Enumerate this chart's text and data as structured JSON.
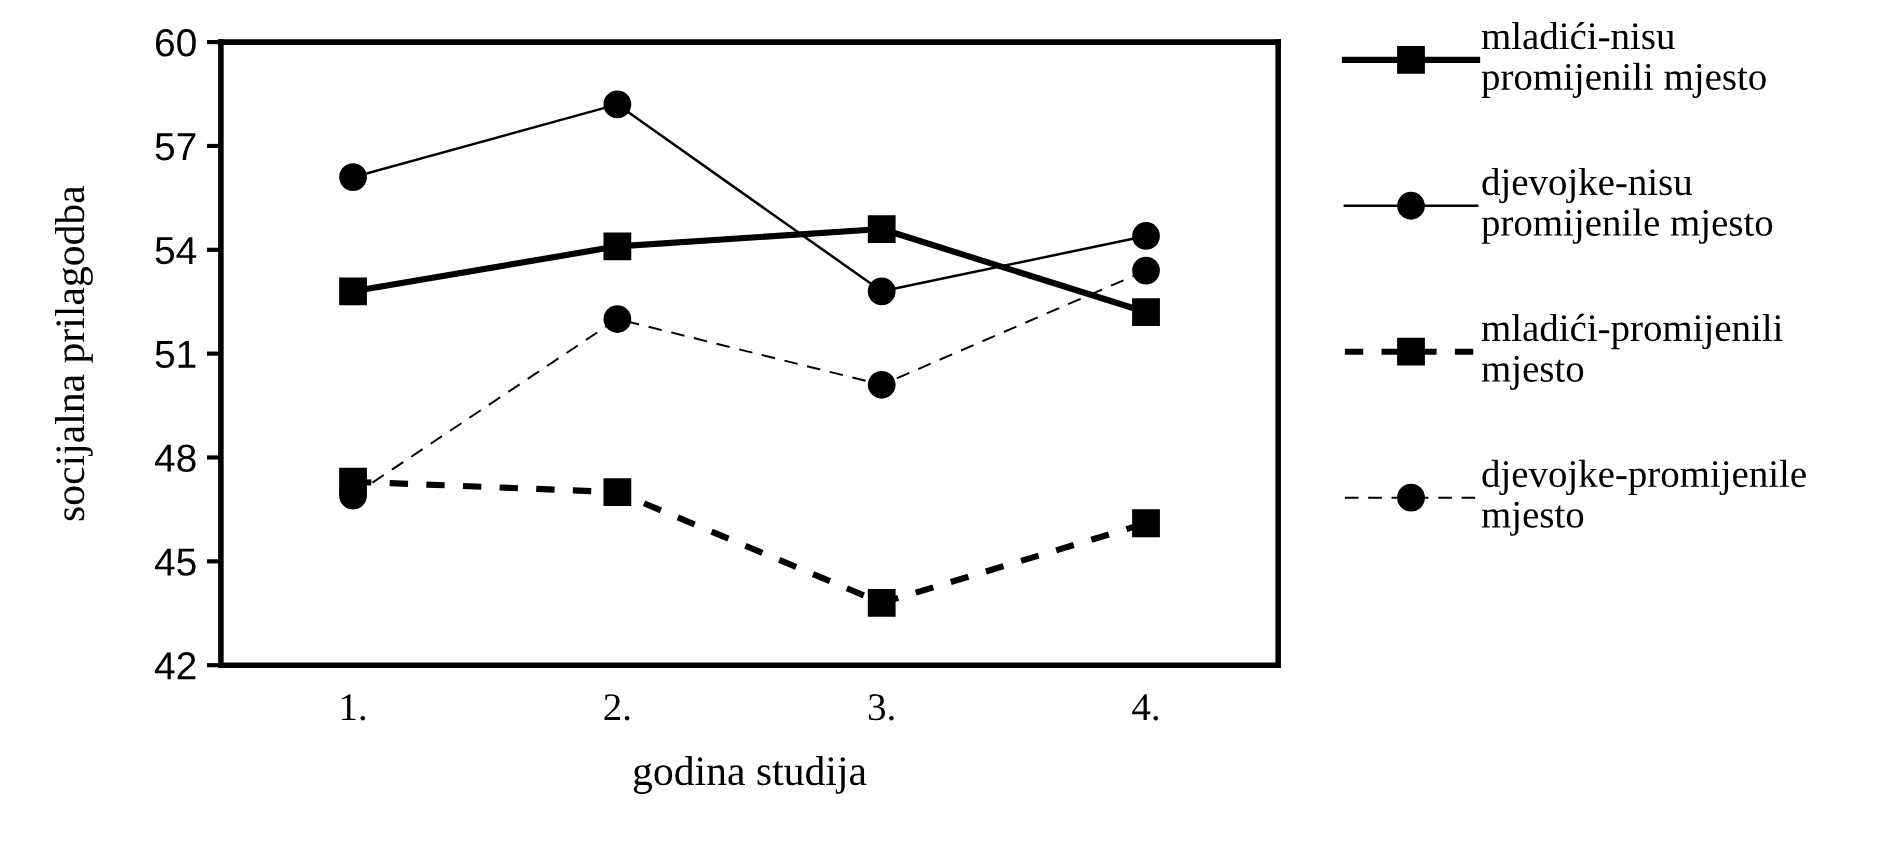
{
  "chart_data": {
    "type": "line",
    "xlabel": "godina studija",
    "ylabel": "socijalna prilagodba",
    "categories": [
      "1.",
      "2.",
      "3.",
      "4."
    ],
    "ylim": [
      42,
      60
    ],
    "yticks": [
      42,
      45,
      48,
      51,
      54,
      57,
      60
    ],
    "grid": false,
    "legend": "right",
    "series": [
      {
        "name": "mladići-nisu\npromijenili mjesto",
        "color": "#000000",
        "marker": "square",
        "line_style": "solid",
        "values": [
          52.8,
          54.1,
          54.6,
          52.2
        ]
      },
      {
        "name": "djevojke-nisu\npromijenile mjesto",
        "color": "#000000",
        "marker": "circle",
        "line_style": "solid",
        "values": [
          56.1,
          58.2,
          52.8,
          54.4
        ]
      },
      {
        "name": "mladići-promijenili\nmjesto",
        "color": "#000000",
        "marker": "square",
        "line_style": "dotted",
        "values": [
          47.3,
          47.0,
          43.8,
          46.1
        ]
      },
      {
        "name": "djevojke-promijenile\nmjesto",
        "color": "#000000",
        "marker": "circle",
        "line_style": "dashed",
        "values": [
          46.9,
          52.0,
          50.1,
          53.4
        ]
      }
    ]
  }
}
